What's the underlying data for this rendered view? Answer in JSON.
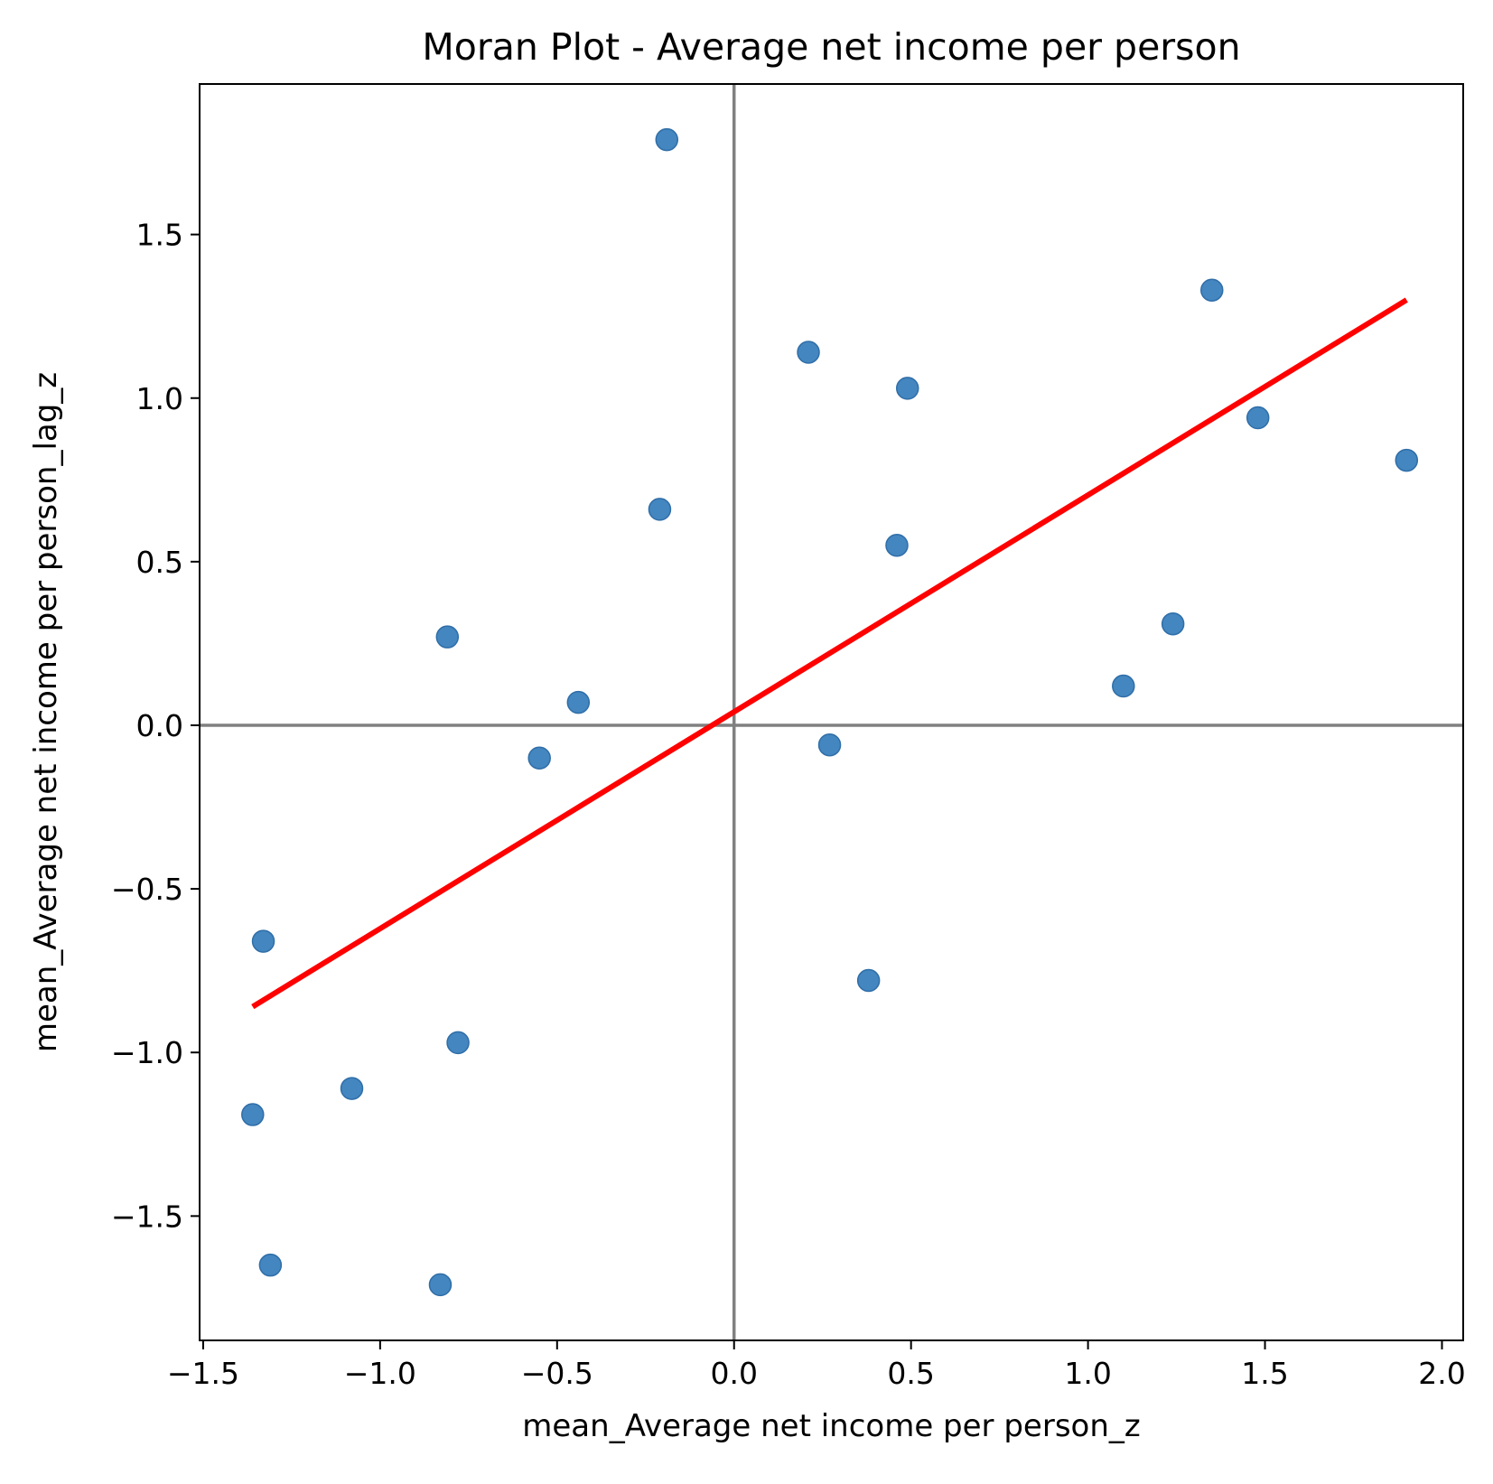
{
  "chart_data": {
    "type": "scatter",
    "title": "Moran Plot - Average net income per person",
    "xlabel": "mean_Average net income per person_z",
    "ylabel": "mean_Average net income per person_lag_z",
    "xlim": [
      -1.51,
      2.06
    ],
    "ylim": [
      -1.88,
      1.96
    ],
    "xticks": [
      -1.5,
      -1.0,
      -0.5,
      0.0,
      0.5,
      1.0,
      1.5,
      2.0
    ],
    "xtick_labels": [
      "−1.5",
      "−1.0",
      "−0.5",
      "0.0",
      "0.5",
      "1.0",
      "1.5",
      "2.0"
    ],
    "yticks": [
      -1.5,
      -1.0,
      -0.5,
      0.0,
      0.5,
      1.0,
      1.5
    ],
    "ytick_labels": [
      "−1.5",
      "−1.0",
      "−0.5",
      "0.0",
      "0.5",
      "1.0",
      "1.5"
    ],
    "grid": false,
    "reference_lines": {
      "x": 0.0,
      "y": 0.0,
      "color": "#808080"
    },
    "series": [
      {
        "color": "#3a7fbc",
        "points": [
          {
            "x": -0.19,
            "y": 1.79
          },
          {
            "x": 1.35,
            "y": 1.33
          },
          {
            "x": 0.21,
            "y": 1.14
          },
          {
            "x": 0.49,
            "y": 1.03
          },
          {
            "x": 1.48,
            "y": 0.94
          },
          {
            "x": 1.9,
            "y": 0.81
          },
          {
            "x": -0.21,
            "y": 0.66
          },
          {
            "x": 0.46,
            "y": 0.55
          },
          {
            "x": 1.24,
            "y": 0.31
          },
          {
            "x": -0.81,
            "y": 0.27
          },
          {
            "x": 1.1,
            "y": 0.12
          },
          {
            "x": -0.44,
            "y": 0.07
          },
          {
            "x": 0.27,
            "y": -0.06
          },
          {
            "x": -0.55,
            "y": -0.1
          },
          {
            "x": -1.33,
            "y": -0.66
          },
          {
            "x": 0.38,
            "y": -0.78
          },
          {
            "x": -0.78,
            "y": -0.97
          },
          {
            "x": -1.08,
            "y": -1.11
          },
          {
            "x": -1.36,
            "y": -1.19
          },
          {
            "x": -1.31,
            "y": -1.65
          },
          {
            "x": -0.83,
            "y": -1.71
          }
        ]
      }
    ],
    "fit_line": {
      "color": "#ff0000",
      "x": [
        -1.36,
        1.9
      ],
      "y": [
        -0.86,
        1.3
      ]
    }
  }
}
